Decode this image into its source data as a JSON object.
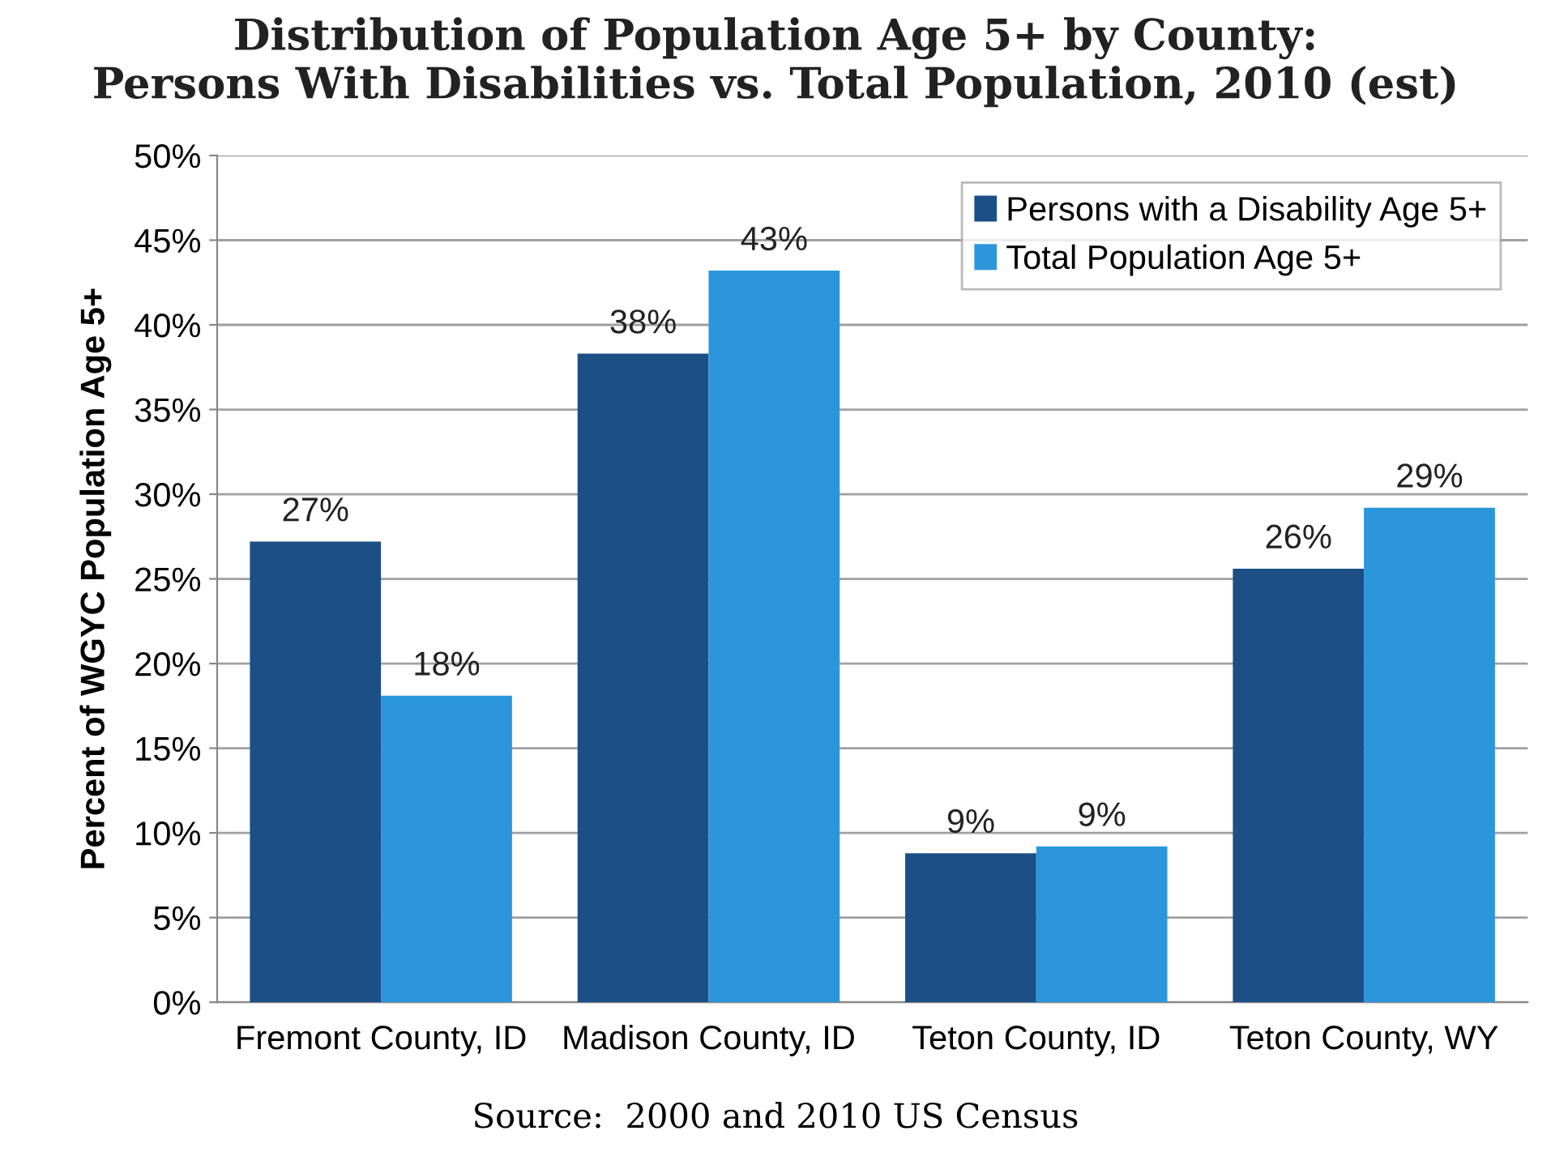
{
  "chart_data": {
    "type": "bar",
    "title": "Distribution of Population Age 5+ by County:\nPersons With Disabilities vs. Total Population, 2010 (est)",
    "ylabel": "Percent of WGYC Population Age 5+",
    "categories": [
      "Fremont County, ID",
      "Madison County, ID",
      "Teton County, ID",
      "Teton County, WY"
    ],
    "series": [
      {
        "name": "Persons with a Disability Age 5+",
        "color": "#1b4f86",
        "values": [
          27.2,
          38.3,
          8.8,
          25.6
        ],
        "value_labels": [
          "27%",
          "38%",
          "9%",
          "26%"
        ]
      },
      {
        "name": "Total Population Age 5+",
        "color": "#2c96dc",
        "values": [
          18.1,
          43.2,
          9.2,
          29.2
        ],
        "value_labels": [
          "18%",
          "43%",
          "9%",
          "29%"
        ]
      }
    ],
    "ylim": [
      0,
      50
    ],
    "yticks": [
      {
        "value": 0,
        "label": "0%"
      },
      {
        "value": 5,
        "label": "5%"
      },
      {
        "value": 10,
        "label": "10%"
      },
      {
        "value": 15,
        "label": "15%"
      },
      {
        "value": 20,
        "label": "20%"
      },
      {
        "value": 25,
        "label": "25%"
      },
      {
        "value": 30,
        "label": "30%"
      },
      {
        "value": 35,
        "label": "35%"
      },
      {
        "value": 40,
        "label": "40%"
      },
      {
        "value": 45,
        "label": "45%"
      },
      {
        "value": 50,
        "label": "50%"
      }
    ],
    "grid": "y",
    "legend": "top right",
    "annotations": [
      "Source:  2000 and 2010 US Census"
    ]
  }
}
